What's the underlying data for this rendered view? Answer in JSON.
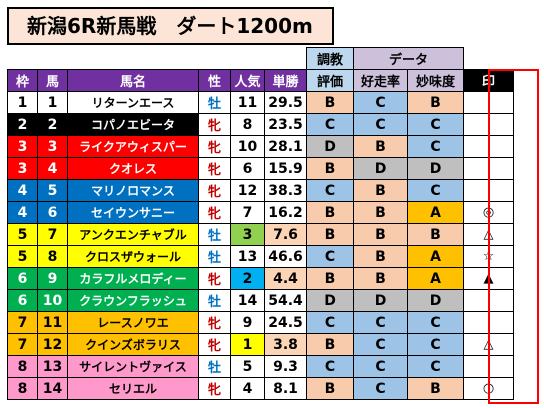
{
  "title": "新潟6R新馬戦　ダート1200m",
  "header": {
    "chokyo_top": "調教",
    "chokyo_bottom": "評価",
    "data_group": "データ",
    "cols": {
      "waku": "枠",
      "uma": "馬",
      "name": "馬名",
      "sex": "性",
      "ninki": "人気",
      "tansho": "単勝",
      "kosoritsu": "好走率",
      "myomido": "妙味度",
      "shirushi": "印"
    }
  },
  "colors": {
    "waku": {
      "1": {
        "bg": "#ffffff",
        "fg": "#000000"
      },
      "2": {
        "bg": "#000000",
        "fg": "#ffffff"
      },
      "3": {
        "bg": "#ff0000",
        "fg": "#ffffff"
      },
      "4": {
        "bg": "#0070c0",
        "fg": "#ffffff"
      },
      "5": {
        "bg": "#ffff00",
        "fg": "#000000"
      },
      "6": {
        "bg": "#00b050",
        "fg": "#ffffff"
      },
      "7": {
        "bg": "#ffc000",
        "fg": "#000000"
      },
      "8": {
        "bg": "#ff99cc",
        "fg": "#000000"
      }
    },
    "grade": {
      "A": "#ffc000",
      "B": "#f8cbad",
      "C": "#9dc3e6",
      "D": "#bfbfbf"
    },
    "ninki_top": {
      "1": "#ffff00",
      "2": "#00b0f0",
      "3": "#92d050"
    },
    "tansho_low": "#fbd5b5"
  },
  "rows": [
    {
      "waku": "1",
      "uma": "1",
      "name": "リターンエース",
      "sex": "牡",
      "ninki": "11",
      "tansho": "29.5",
      "chokyo": "B",
      "kosoritsu": "C",
      "myomido": "B",
      "mark": ""
    },
    {
      "waku": "2",
      "uma": "2",
      "name": "コパノエビータ",
      "sex": "牝",
      "ninki": "8",
      "tansho": "23.5",
      "chokyo": "C",
      "kosoritsu": "C",
      "myomido": "C",
      "mark": ""
    },
    {
      "waku": "3",
      "uma": "3",
      "name": "ライクアウィスパー",
      "sex": "牝",
      "ninki": "10",
      "tansho": "28.1",
      "chokyo": "D",
      "kosoritsu": "B",
      "myomido": "C",
      "mark": ""
    },
    {
      "waku": "3",
      "uma": "4",
      "name": "クオレス",
      "sex": "牝",
      "ninki": "6",
      "tansho": "15.9",
      "chokyo": "B",
      "kosoritsu": "D",
      "myomido": "D",
      "mark": ""
    },
    {
      "waku": "4",
      "uma": "5",
      "name": "マリノロマンス",
      "sex": "牝",
      "ninki": "12",
      "tansho": "38.3",
      "chokyo": "C",
      "kosoritsu": "B",
      "myomido": "C",
      "mark": ""
    },
    {
      "waku": "4",
      "uma": "6",
      "name": "セイウンサニー",
      "sex": "牝",
      "ninki": "7",
      "tansho": "16.2",
      "chokyo": "B",
      "kosoritsu": "B",
      "myomido": "A",
      "mark": "◎"
    },
    {
      "waku": "5",
      "uma": "7",
      "name": "アンクエンチャブル",
      "sex": "牡",
      "ninki": "3",
      "tansho": "7.6",
      "chokyo": "B",
      "kosoritsu": "B",
      "myomido": "B",
      "mark": "△"
    },
    {
      "waku": "5",
      "uma": "8",
      "name": "クロスザウォール",
      "sex": "牡",
      "ninki": "13",
      "tansho": "46.6",
      "chokyo": "C",
      "kosoritsu": "B",
      "myomido": "A",
      "mark": "☆"
    },
    {
      "waku": "6",
      "uma": "9",
      "name": "カラフルメロディー",
      "sex": "牝",
      "ninki": "2",
      "tansho": "4.4",
      "chokyo": "B",
      "kosoritsu": "B",
      "myomido": "A",
      "mark": "▲"
    },
    {
      "waku": "6",
      "uma": "10",
      "name": "クラウンフラッシュ",
      "sex": "牡",
      "ninki": "14",
      "tansho": "54.4",
      "chokyo": "D",
      "kosoritsu": "D",
      "myomido": "D",
      "mark": ""
    },
    {
      "waku": "7",
      "uma": "11",
      "name": "レースノワエ",
      "sex": "牝",
      "ninki": "9",
      "tansho": "24.5",
      "chokyo": "C",
      "kosoritsu": "C",
      "myomido": "C",
      "mark": ""
    },
    {
      "waku": "7",
      "uma": "12",
      "name": "クインズボラリス",
      "sex": "牝",
      "ninki": "1",
      "tansho": "3.8",
      "chokyo": "B",
      "kosoritsu": "C",
      "myomido": "C",
      "mark": "△"
    },
    {
      "waku": "8",
      "uma": "13",
      "name": "サイレントヴァイス",
      "sex": "牡",
      "ninki": "5",
      "tansho": "9.3",
      "chokyo": "C",
      "kosoritsu": "C",
      "myomido": "C",
      "mark": ""
    },
    {
      "waku": "8",
      "uma": "14",
      "name": "セリエル",
      "sex": "牝",
      "ninki": "4",
      "tansho": "8.1",
      "chokyo": "B",
      "kosoritsu": "C",
      "myomido": "B",
      "mark": "○"
    }
  ]
}
